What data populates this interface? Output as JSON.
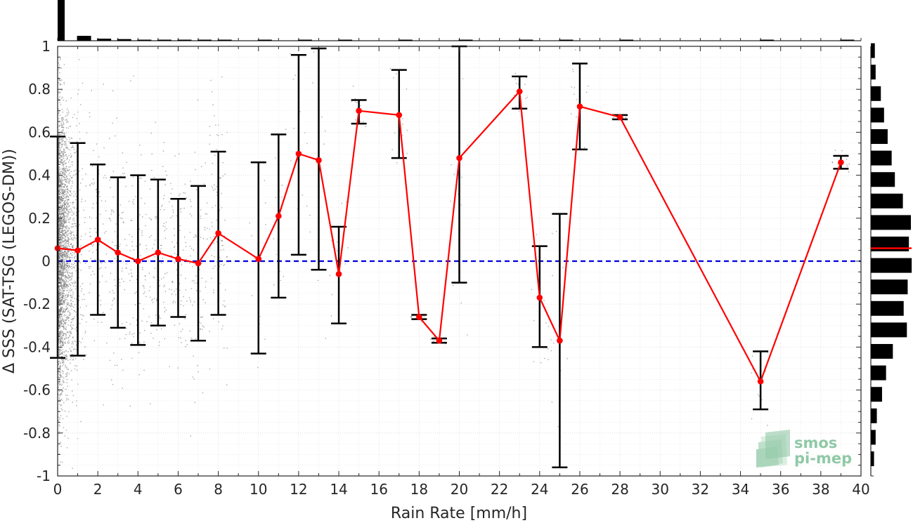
{
  "chart_data": {
    "type": "scatter",
    "xlabel": "Rain Rate [mm/h]",
    "ylabel": "Δ SSS (SAT-TSG (LEGOS-DM))",
    "xlim": [
      0,
      40
    ],
    "ylim": [
      -1,
      1
    ],
    "xticks": [
      "0",
      "2",
      "4",
      "6",
      "8",
      "10",
      "12",
      "14",
      "16",
      "18",
      "20",
      "22",
      "24",
      "26",
      "28",
      "30",
      "32",
      "34",
      "36",
      "38",
      "40"
    ],
    "yticks": [
      "-1",
      "-0.8",
      "-0.6",
      "-0.4",
      "-0.2",
      "0",
      "0.2",
      "0.4",
      "0.6",
      "0.8",
      "1"
    ],
    "grid": true,
    "reference_line": {
      "y": 0,
      "style": "dashed",
      "color": "#0000e0"
    },
    "series": [
      {
        "type": "line-with-errorbars",
        "color": "#ff0000",
        "x": [
          0,
          1,
          2,
          3,
          4,
          5,
          6,
          7,
          8,
          10,
          11,
          12,
          13,
          14,
          15,
          17,
          18,
          19,
          20,
          23,
          24,
          25,
          26,
          28,
          35,
          39
        ],
        "y": [
          0.06,
          0.05,
          0.1,
          0.04,
          0.0,
          0.04,
          0.01,
          -0.01,
          0.13,
          0.01,
          0.21,
          0.5,
          0.47,
          -0.06,
          0.7,
          0.68,
          -0.26,
          -0.37,
          0.48,
          0.79,
          -0.17,
          -0.37,
          0.72,
          0.67,
          -0.56,
          0.46
        ],
        "low": [
          -0.45,
          -0.44,
          -0.25,
          -0.31,
          -0.39,
          -0.3,
          -0.26,
          -0.37,
          -0.25,
          -0.43,
          -0.17,
          0.03,
          -0.04,
          -0.29,
          0.64,
          0.48,
          -0.27,
          -0.38,
          -0.1,
          0.71,
          -0.4,
          -0.96,
          0.52,
          0.66,
          -0.69,
          0.43
        ],
        "high": [
          0.58,
          0.55,
          0.45,
          0.39,
          0.4,
          0.38,
          0.29,
          0.35,
          0.51,
          0.46,
          0.59,
          0.96,
          0.99,
          0.16,
          0.75,
          0.89,
          -0.25,
          -0.36,
          1.0,
          0.86,
          0.07,
          0.22,
          0.92,
          0.68,
          -0.42,
          0.49
        ]
      }
    ],
    "scatter_note": "dense grey point cloud concentrated at low rain rates",
    "marginal_top": {
      "bins": [
        0,
        1,
        2,
        3,
        4,
        5,
        6,
        7,
        8,
        10,
        12,
        14,
        17,
        20,
        23,
        25,
        28,
        35,
        39
      ],
      "counts": [
        1.0,
        0.12,
        0.05,
        0.04,
        0.02,
        0.02,
        0.015,
        0.012,
        0.01,
        0.008,
        0.006,
        0.005,
        0.004,
        0.004,
        0.003,
        0.003,
        0.003,
        0.003,
        0.003
      ]
    },
    "marginal_right": {
      "bin_centers": [
        0.98,
        0.88,
        0.78,
        0.68,
        0.58,
        0.48,
        0.38,
        0.28,
        0.18,
        0.08,
        -0.02,
        -0.12,
        -0.22,
        -0.32,
        -0.42,
        -0.52,
        -0.62,
        -0.72,
        -0.82,
        -0.92
      ],
      "counts": [
        0.1,
        0.12,
        0.25,
        0.33,
        0.42,
        0.52,
        0.6,
        0.8,
        1.0,
        0.95,
        1.02,
        0.92,
        0.82,
        0.9,
        0.55,
        0.38,
        0.28,
        0.15,
        0.12,
        0.08
      ],
      "mean_marker": 0.06,
      "mean_marker_color": "#ff0000"
    },
    "colors": {
      "line": "#ff0000",
      "errorbar": "#000000",
      "scatter": "#7a7a7a",
      "zero_line": "#0000e0",
      "logo": "#8fc9a6"
    }
  },
  "logo": {
    "line1": "smos",
    "line2": "pi-mep"
  }
}
